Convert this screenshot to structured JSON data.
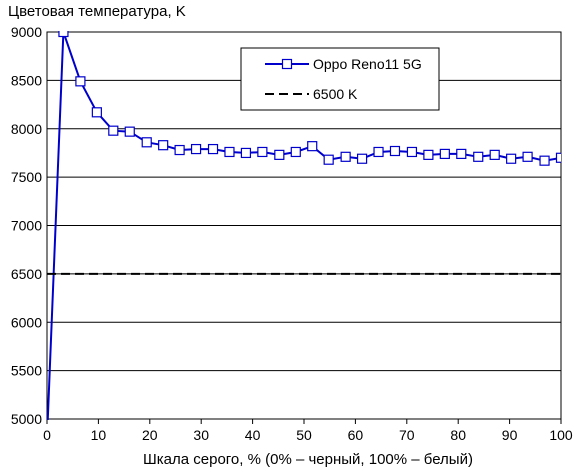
{
  "chart_data": {
    "type": "line",
    "title": "",
    "xlabel": "Шкала серого, % (0% – черный, 100% – белый)",
    "ylabel": "Цветовая температура, K",
    "xlim": [
      0,
      100
    ],
    "ylim": [
      5000,
      9000
    ],
    "xticks": [
      0,
      10,
      20,
      30,
      40,
      50,
      60,
      70,
      80,
      90,
      100
    ],
    "yticks": [
      5000,
      5500,
      6000,
      6500,
      7000,
      7500,
      8000,
      8500,
      9000
    ],
    "grid": "horizontal",
    "legend_position": "top-right",
    "series": [
      {
        "name": "Oppo Reno11 5G",
        "color": "#0000cc",
        "marker": "square",
        "x": [
          0,
          3.2,
          6.5,
          9.7,
          12.9,
          16.1,
          19.4,
          22.6,
          25.8,
          29,
          32.3,
          35.5,
          38.7,
          41.9,
          45.2,
          48.4,
          51.6,
          54.8,
          58.1,
          61.3,
          64.5,
          67.7,
          71,
          74.2,
          77.4,
          80.6,
          83.9,
          87.1,
          90.3,
          93.5,
          96.8,
          100
        ],
        "y": [
          4800,
          9000,
          8490,
          8170,
          7980,
          7970,
          7860,
          7830,
          7780,
          7790,
          7790,
          7760,
          7750,
          7760,
          7730,
          7760,
          7820,
          7680,
          7710,
          7690,
          7760,
          7770,
          7760,
          7730,
          7740,
          7740,
          7710,
          7730,
          7690,
          7710,
          7670,
          7700
        ]
      },
      {
        "name": "6500 K",
        "color": "#000000",
        "style": "dashed",
        "x": [
          0,
          100
        ],
        "y": [
          6500,
          6500
        ]
      }
    ]
  }
}
